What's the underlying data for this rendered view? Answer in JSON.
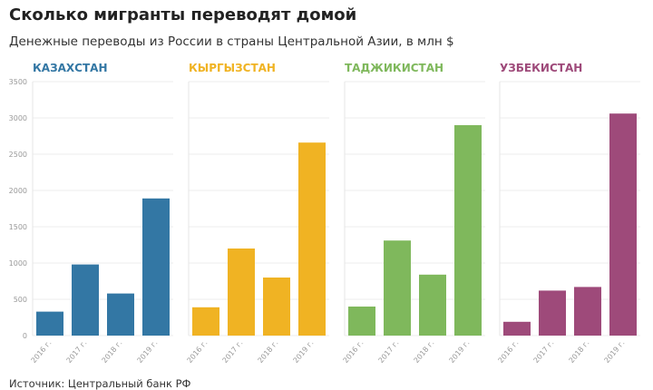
{
  "header": {
    "title": "Сколько мигранты переводят домой",
    "subtitle": "Денежные переводы из России в страны Центральной Азии, в млн $"
  },
  "footer": {
    "source": "Источник: Центральный банк РФ"
  },
  "chart_data": [
    {
      "type": "bar",
      "title": "КАЗАХСТАН",
      "color": "#3377a4",
      "categories": [
        "2016 г.",
        "2017 г.",
        "2018 г.",
        "2019 г."
      ],
      "values": [
        330,
        980,
        580,
        1890
      ],
      "ylim": [
        0,
        3500
      ],
      "yticks": [
        0,
        500,
        1000,
        1500,
        2000,
        2500,
        3000,
        3500
      ],
      "grid": true
    },
    {
      "type": "bar",
      "title": "КЫРГЫЗСТАН",
      "color": "#f0b323",
      "categories": [
        "2016 г.",
        "2017 г.",
        "2018 г.",
        "2019 г."
      ],
      "values": [
        390,
        1200,
        800,
        2660
      ],
      "ylim": [
        0,
        3500
      ],
      "grid": true
    },
    {
      "type": "bar",
      "title": "ТАДЖИКИСТАН",
      "color": "#7fb85c",
      "categories": [
        "2016 г.",
        "2017 г.",
        "2018 г.",
        "2019 г."
      ],
      "values": [
        400,
        1310,
        840,
        2900
      ],
      "ylim": [
        0,
        3500
      ],
      "grid": true
    },
    {
      "type": "bar",
      "title": "УЗБЕКИСТАН",
      "color": "#9e4a7a",
      "categories": [
        "2016 г.",
        "2017 г.",
        "2018 г.",
        "2019 г."
      ],
      "values": [
        190,
        620,
        670,
        3060
      ],
      "ylim": [
        0,
        3500
      ],
      "grid": true
    }
  ]
}
